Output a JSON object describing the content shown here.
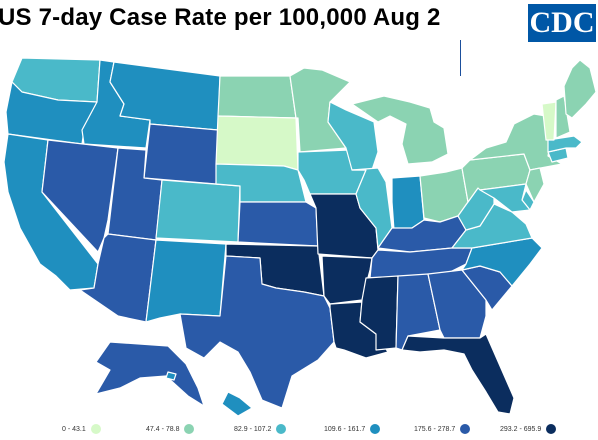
{
  "title": "US 7-day Case Rate per 100,000 Aug 2",
  "logo_text": "CDC",
  "colors": {
    "c0": "#d6f9c8",
    "c1": "#8bd3b2",
    "c2": "#4ab9c9",
    "c3": "#1f8fbf",
    "c4": "#2a5aa8",
    "c5": "#0b2d5e"
  },
  "legend": [
    {
      "label": "0 - 43.1",
      "color_key": "c0"
    },
    {
      "label": "47.4 - 78.8",
      "color_key": "c1"
    },
    {
      "label": "82.9 - 107.2",
      "color_key": "c2"
    },
    {
      "label": "109.6 - 161.7",
      "color_key": "c3"
    },
    {
      "label": "175.6 - 278.7",
      "color_key": "c4"
    },
    {
      "label": "293.2 - 695.9",
      "color_key": "c5"
    }
  ],
  "states": {
    "WA": "c2",
    "OR": "c3",
    "CA": "c3",
    "ID": "c3",
    "NV": "c4",
    "MT": "c3",
    "WY": "c4",
    "UT": "c4",
    "AZ": "c4",
    "CO": "c2",
    "NM": "c3",
    "ND": "c1",
    "SD": "c0",
    "NE": "c2",
    "KS": "c4",
    "OK": "c5",
    "TX": "c4",
    "MN": "c1",
    "IA": "c2",
    "MO": "c5",
    "AR": "c5",
    "LA": "c5",
    "WI": "c2",
    "IL": "c2",
    "MI": "c1",
    "IN": "c3",
    "OH": "c1",
    "KY": "c4",
    "TN": "c4",
    "MS": "c5",
    "AL": "c4",
    "GA": "c4",
    "FL": "c5",
    "SC": "c4",
    "NC": "c3",
    "VA": "c2",
    "WV": "c2",
    "PA": "c1",
    "NY": "c1",
    "VT": "c0",
    "NH": "c1",
    "ME": "c1",
    "MA": "c2",
    "CT": "c2",
    "NJ": "c1",
    "DE": "c2",
    "MD": "c2",
    "AK": "c4",
    "HI": "c3"
  }
}
